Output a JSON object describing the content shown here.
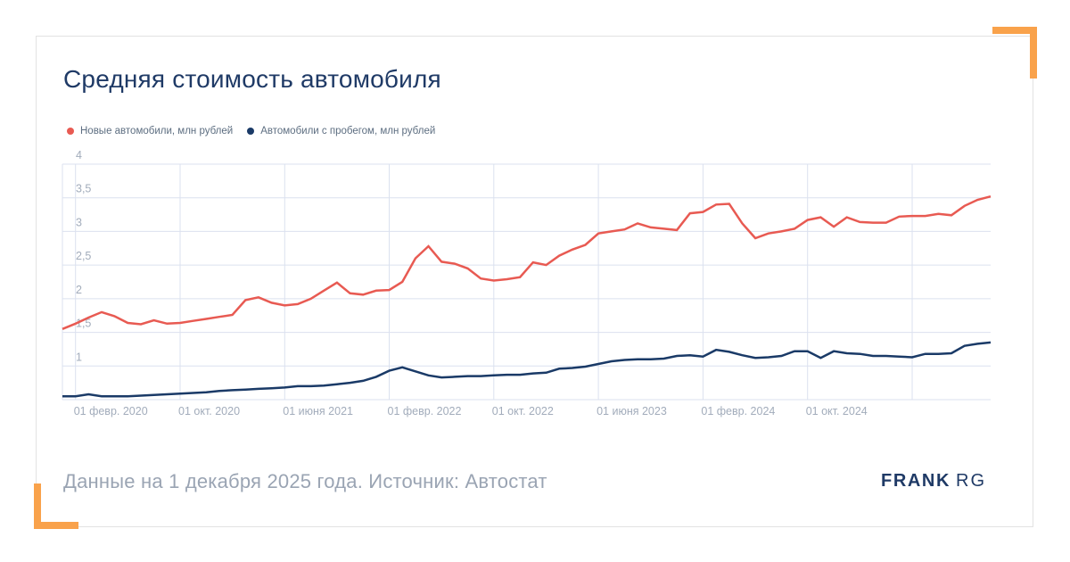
{
  "page": {
    "title": "Средняя стоимость автомобиля",
    "footer_note": "Данные на 1 декабря 2025 года. Источник: Автостат",
    "logo": {
      "part1": "FRANK",
      "part2": "RG"
    }
  },
  "colors": {
    "accent_orange": "#f9a24b",
    "title_navy": "#1f3a66",
    "grid": "#dbe1ef",
    "axis_label": "#a2acbb",
    "legend_text": "#5d6e81",
    "footer_text": "#9aa4b3",
    "card_border": "#e2e2e2"
  },
  "chart_data": {
    "type": "line",
    "title": "Средняя стоимость автомобиля",
    "xlabel": "",
    "ylabel": "млн рублей",
    "ylim": [
      0.5,
      4
    ],
    "grid": true,
    "legend_position": "top-left",
    "categories": [
      "2020-01",
      "2020-02",
      "2020-03",
      "2020-04",
      "2020-05",
      "2020-06",
      "2020-07",
      "2020-08",
      "2020-09",
      "2020-10",
      "2020-11",
      "2020-12",
      "2021-01",
      "2021-02",
      "2021-03",
      "2021-04",
      "2021-05",
      "2021-06",
      "2021-07",
      "2021-08",
      "2021-09",
      "2021-10",
      "2021-11",
      "2021-12",
      "2022-01",
      "2022-02",
      "2022-03",
      "2022-04",
      "2022-05",
      "2022-06",
      "2022-07",
      "2022-08",
      "2022-09",
      "2022-10",
      "2022-11",
      "2022-12",
      "2023-01",
      "2023-02",
      "2023-03",
      "2023-04",
      "2023-05",
      "2023-06",
      "2023-07",
      "2023-08",
      "2023-09",
      "2023-10",
      "2023-11",
      "2023-12",
      "2024-01",
      "2024-02",
      "2024-03",
      "2024-04",
      "2024-05",
      "2024-06",
      "2024-07",
      "2024-08",
      "2024-09",
      "2024-10",
      "2024-11",
      "2024-12",
      "2025-01",
      "2025-02",
      "2025-03",
      "2025-04",
      "2025-05",
      "2025-06",
      "2025-07",
      "2025-08",
      "2025-09",
      "2025-10",
      "2025-11",
      "2025-12"
    ],
    "series": [
      {
        "name": "Новые автомобили, млн рублей",
        "color": "#e85a52",
        "values": [
          1.55,
          1.63,
          1.72,
          1.8,
          1.74,
          1.64,
          1.62,
          1.68,
          1.63,
          1.64,
          1.67,
          1.7,
          1.73,
          1.76,
          1.98,
          2.02,
          1.94,
          1.9,
          1.92,
          2.0,
          2.12,
          2.24,
          2.08,
          2.06,
          2.12,
          2.13,
          2.25,
          2.6,
          2.78,
          2.55,
          2.52,
          2.45,
          2.3,
          2.27,
          2.29,
          2.32,
          2.54,
          2.5,
          2.64,
          2.73,
          2.8,
          2.97,
          3.0,
          3.03,
          3.12,
          3.06,
          3.04,
          3.02,
          3.27,
          3.29,
          3.4,
          3.41,
          3.12,
          2.9,
          2.97,
          3.0,
          3.04,
          3.17,
          3.21,
          3.07,
          3.21,
          3.14,
          3.13,
          3.13,
          3.22,
          3.23,
          3.23,
          3.26,
          3.24,
          3.38,
          3.47,
          3.52
        ]
      },
      {
        "name": "Автомобили с пробегом, млн рублей",
        "color": "#1a3a67",
        "values": [
          0.55,
          0.55,
          0.58,
          0.55,
          0.55,
          0.55,
          0.56,
          0.57,
          0.58,
          0.59,
          0.6,
          0.61,
          0.63,
          0.64,
          0.65,
          0.66,
          0.67,
          0.68,
          0.7,
          0.7,
          0.71,
          0.73,
          0.75,
          0.78,
          0.84,
          0.93,
          0.98,
          0.92,
          0.86,
          0.83,
          0.84,
          0.85,
          0.85,
          0.86,
          0.87,
          0.87,
          0.89,
          0.9,
          0.96,
          0.97,
          0.99,
          1.03,
          1.07,
          1.09,
          1.1,
          1.1,
          1.11,
          1.15,
          1.16,
          1.14,
          1.24,
          1.21,
          1.16,
          1.12,
          1.13,
          1.15,
          1.22,
          1.22,
          1.12,
          1.22,
          1.19,
          1.18,
          1.15,
          1.15,
          1.14,
          1.13,
          1.18,
          1.18,
          1.19,
          1.3,
          1.33,
          1.35
        ]
      }
    ],
    "y_ticks": [
      {
        "value": 4,
        "label": "4"
      },
      {
        "value": 3.5,
        "label": "3,5"
      },
      {
        "value": 3,
        "label": "3"
      },
      {
        "value": 2.5,
        "label": "2,5"
      },
      {
        "value": 2,
        "label": "2"
      },
      {
        "value": 1.5,
        "label": "1,5"
      },
      {
        "value": 1,
        "label": "1"
      },
      {
        "value": 0.5,
        "label": ""
      }
    ],
    "x_ticks": [
      {
        "index": 1,
        "label": "01 февр. 2020"
      },
      {
        "index": 9,
        "label": "01 окт. 2020"
      },
      {
        "index": 17,
        "label": "01 июня 2021"
      },
      {
        "index": 25,
        "label": "01 февр. 2022"
      },
      {
        "index": 33,
        "label": "01 окт. 2022"
      },
      {
        "index": 41,
        "label": "01 июня 2023"
      },
      {
        "index": 49,
        "label": "01 февр. 2024"
      },
      {
        "index": 57,
        "label": "01 окт. 2024"
      }
    ],
    "x_gridline_indices": [
      1,
      9,
      17,
      25,
      33,
      41,
      49,
      57,
      65
    ]
  }
}
